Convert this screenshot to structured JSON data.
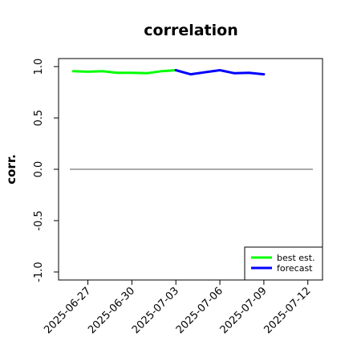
{
  "chart_data": {
    "type": "line",
    "title": "correlation",
    "xlabel": "",
    "ylabel": "corr.",
    "x_ticks": [
      "2025-06-27",
      "2025-06-30",
      "2025-07-03",
      "2025-07-06",
      "2025-07-09",
      "2025-07-12"
    ],
    "highlight_tick": "2025-07-03",
    "highlight_color": "#228B22",
    "y_ticks": [
      "-1.0",
      "-0.5",
      "0.0",
      "0.5",
      "1.0"
    ],
    "ylim": [
      -1.0,
      1.0
    ],
    "xlim": [
      "2025-06-25",
      "2025-07-13"
    ],
    "series": [
      {
        "name": "best est.",
        "color": "#00ff00",
        "x": [
          "2025-06-26",
          "2025-06-27",
          "2025-06-28",
          "2025-06-29",
          "2025-06-30",
          "2025-07-01",
          "2025-07-02",
          "2025-07-03"
        ],
        "values": [
          0.955,
          0.95,
          0.955,
          0.94,
          0.94,
          0.935,
          0.955,
          0.965
        ]
      },
      {
        "name": "forecast",
        "color": "#0000ff",
        "x": [
          "2025-07-03",
          "2025-07-04",
          "2025-07-05",
          "2025-07-06",
          "2025-07-07",
          "2025-07-08",
          "2025-07-09"
        ],
        "values": [
          0.965,
          0.925,
          0.945,
          0.965,
          0.935,
          0.94,
          0.925
        ]
      }
    ],
    "reference_line": 0.0,
    "grid": false,
    "legend_position": "bottom-right"
  }
}
